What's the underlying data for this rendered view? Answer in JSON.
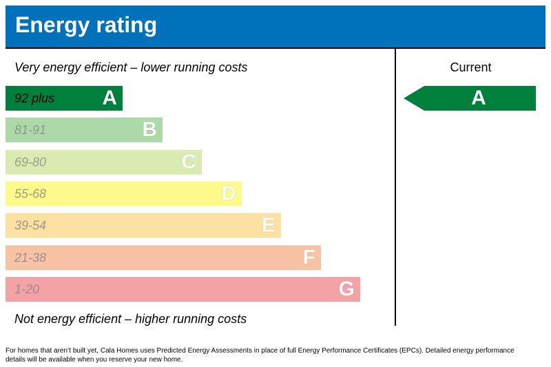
{
  "header": {
    "title": "Energy rating"
  },
  "chart_data": {
    "type": "bar",
    "title": "Energy rating",
    "top_label": "Very energy efficient – lower running costs",
    "bottom_label": "Not energy efficient – higher running costs",
    "current_label": "Current",
    "current_rating": "A",
    "bands": [
      {
        "letter": "A",
        "range": "92 plus",
        "color": "#007f3d",
        "text_color": "#000000"
      },
      {
        "letter": "B",
        "range": "81-91",
        "color": "#acd9a8",
        "text_color": "#8a9a8a"
      },
      {
        "letter": "C",
        "range": "69-80",
        "color": "#d9ebb0",
        "text_color": "#9aa08a"
      },
      {
        "letter": "D",
        "range": "55-68",
        "color": "#fdf98a",
        "text_color": "#a0a080"
      },
      {
        "letter": "E",
        "range": "39-54",
        "color": "#fde1a3",
        "text_color": "#a09a88"
      },
      {
        "letter": "F",
        "range": "21-38",
        "color": "#f7c3a4",
        "text_color": "#a09088"
      },
      {
        "letter": "G",
        "range": "1-20",
        "color": "#f3a3a5",
        "text_color": "#a08888"
      }
    ]
  },
  "footer": {
    "note": "For homes that aren’t built yet, Cala Homes uses Predicted Energy Assessments in place of full Energy Performance Certificates (EPCs). Detailed energy performance details will be available when you reserve your new home."
  }
}
